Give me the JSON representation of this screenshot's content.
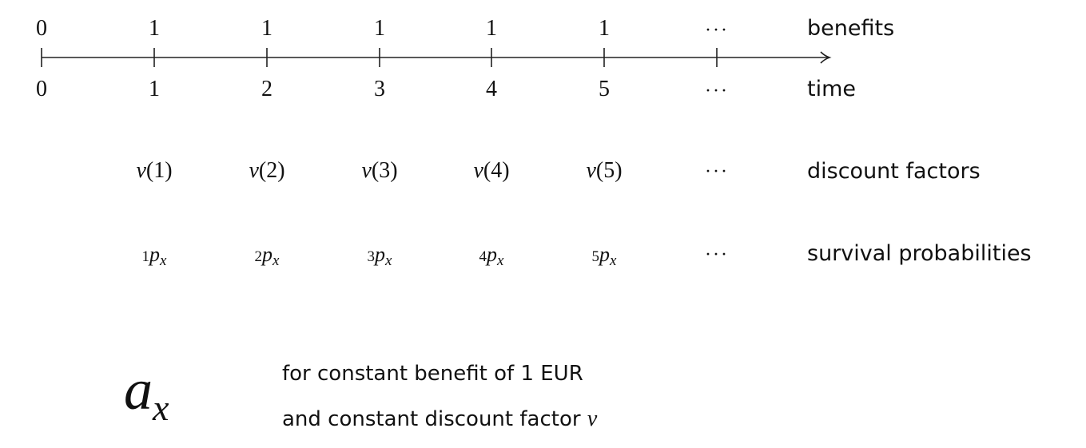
{
  "benefits_row": {
    "values": [
      "0",
      "1",
      "1",
      "1",
      "1",
      "1"
    ],
    "ellipsis": "···",
    "label": "benefits"
  },
  "time_row": {
    "values": [
      "0",
      "1",
      "2",
      "3",
      "4",
      "5"
    ],
    "ellipsis": "···",
    "label": "time"
  },
  "discount_row": {
    "symbol": "v",
    "args": [
      "1",
      "2",
      "3",
      "4",
      "5"
    ],
    "ellipsis": "···",
    "label": "discount factors"
  },
  "survival_row": {
    "prefixes": [
      "1",
      "2",
      "3",
      "4",
      "5"
    ],
    "symbol": "p",
    "subscript": "x",
    "ellipsis": "···",
    "label": "survival probabilities"
  },
  "formula": {
    "symbol": "a",
    "subscript": "x",
    "line1": "for constant benefit of 1 EUR",
    "line2_text": "and constant discount factor ",
    "line2_symbol": "v"
  },
  "colors": {
    "ink": "#111111",
    "axis": "#222222"
  }
}
